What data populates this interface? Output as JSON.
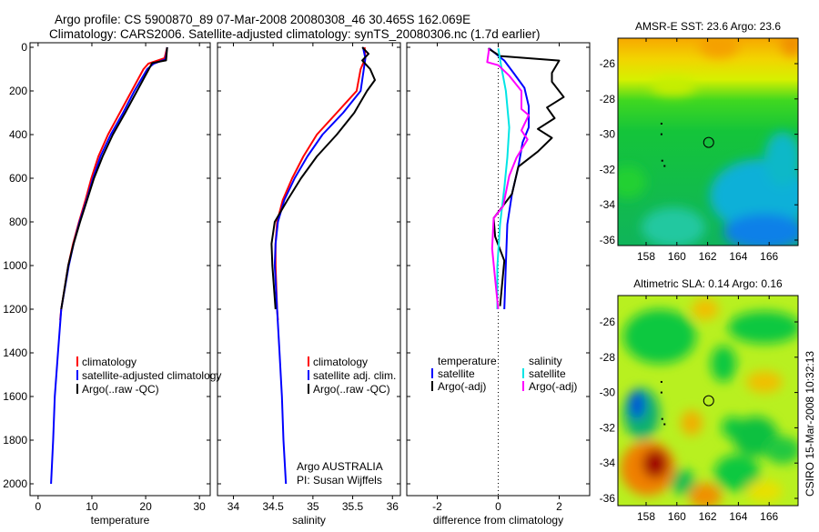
{
  "title": {
    "line1": "Argo profile: CS 5900870_89 07-Mar-2008 20080308_46 30.465S 162.069E",
    "line2": "Climatology: CARS2006. Satellite-adjusted climatology: synTS_20080306.nc (1.7d earlier)"
  },
  "side_text": "CSIRO 15-Mar-2008 10:32:13",
  "credit": {
    "line1": "Argo AUSTRALIA",
    "line2": "PI: Susan Wijffels"
  },
  "colors": {
    "climatology": "#ff0000",
    "satellite": "#0000ff",
    "argo": "#000000",
    "sal_satellite": "#00e5e5",
    "sal_argo": "#ff00ff"
  },
  "depth_axis": {
    "ticks": [
      0,
      200,
      400,
      600,
      800,
      1000,
      1200,
      1400,
      1600,
      1800,
      2000
    ],
    "range": [
      -21,
      2054
    ],
    "reversed": true
  },
  "chart_data": [
    {
      "type": "line",
      "name": "temperature-panel",
      "xlabel": "temperature",
      "xlim": [
        -1.5,
        32
      ],
      "xticks": [
        0,
        10,
        20,
        30
      ],
      "legend": [
        "climatology",
        "satellite-adjusted climatology",
        "Argo(..raw -QC)"
      ],
      "series": [
        {
          "name": "climatology",
          "color": "#ff0000",
          "points": [
            [
              24,
              0
            ],
            [
              23.5,
              50
            ],
            [
              20.5,
              75
            ],
            [
              19.6,
              100
            ],
            [
              17.4,
              200
            ],
            [
              15.2,
              300
            ],
            [
              13,
              400
            ],
            [
              11.2,
              500
            ],
            [
              9.9,
              600
            ],
            [
              8.8,
              700
            ],
            [
              7.6,
              800
            ],
            [
              6.5,
              900
            ],
            [
              5.6,
              1000
            ],
            [
              4.3,
              1200
            ],
            [
              4.1,
              1250
            ]
          ]
        },
        {
          "name": "satellite-adjusted climatology",
          "color": "#0000ff",
          "points": [
            [
              24,
              0
            ],
            [
              23.7,
              55
            ],
            [
              21.5,
              75
            ],
            [
              20.3,
              100
            ],
            [
              17.9,
              200
            ],
            [
              15.8,
              300
            ],
            [
              13.5,
              400
            ],
            [
              11.6,
              500
            ],
            [
              10.2,
              600
            ],
            [
              9,
              700
            ],
            [
              7.7,
              800
            ],
            [
              6.6,
              900
            ],
            [
              5.7,
              1000
            ],
            [
              4.3,
              1200
            ],
            [
              3.7,
              1400
            ],
            [
              3.1,
              1600
            ],
            [
              2.8,
              1800
            ],
            [
              2.4,
              2000
            ]
          ]
        },
        {
          "name": "Argo(..raw -QC)",
          "color": "#000000",
          "points": [
            [
              24,
              0
            ],
            [
              23.8,
              60
            ],
            [
              21.2,
              72
            ],
            [
              20.6,
              100
            ],
            [
              18.4,
              200
            ],
            [
              16.2,
              300
            ],
            [
              13.9,
              400
            ],
            [
              12,
              500
            ],
            [
              10.4,
              600
            ],
            [
              9.1,
              700
            ],
            [
              7.8,
              800
            ],
            [
              6.6,
              900
            ],
            [
              5.6,
              1000
            ],
            [
              4.3,
              1200
            ]
          ]
        }
      ]
    },
    {
      "type": "line",
      "name": "salinity-panel",
      "xlabel": "salinity",
      "xlim": [
        33.8,
        36.1
      ],
      "xticks": [
        34,
        34.5,
        35,
        35.5,
        36
      ],
      "legend": [
        "climatology",
        "satellite adj. clim.",
        "Argo(..raw -QC)"
      ],
      "series": [
        {
          "name": "climatology",
          "color": "#ff0000",
          "points": [
            [
              35.65,
              0
            ],
            [
              35.66,
              50
            ],
            [
              35.6,
              100
            ],
            [
              35.55,
              200
            ],
            [
              35.3,
              300
            ],
            [
              35.05,
              400
            ],
            [
              34.88,
              500
            ],
            [
              34.74,
              600
            ],
            [
              34.62,
              700
            ],
            [
              34.55,
              800
            ],
            [
              34.53,
              900
            ],
            [
              34.53,
              1000
            ],
            [
              34.55,
              1200
            ],
            [
              34.56,
              1250
            ]
          ]
        },
        {
          "name": "satellite adj. clim.",
          "color": "#0000ff",
          "points": [
            [
              35.63,
              0
            ],
            [
              35.66,
              50
            ],
            [
              35.64,
              100
            ],
            [
              35.6,
              200
            ],
            [
              35.38,
              300
            ],
            [
              35.12,
              400
            ],
            [
              34.93,
              500
            ],
            [
              34.77,
              600
            ],
            [
              34.64,
              700
            ],
            [
              34.56,
              800
            ],
            [
              34.53,
              900
            ],
            [
              34.52,
              1000
            ],
            [
              34.55,
              1200
            ],
            [
              34.58,
              1400
            ],
            [
              34.61,
              1600
            ],
            [
              34.63,
              1800
            ],
            [
              34.66,
              2000
            ]
          ]
        },
        {
          "name": "Argo(..raw -QC)",
          "color": "#000000",
          "points": [
            [
              35.62,
              0
            ],
            [
              35.7,
              30
            ],
            [
              35.62,
              60
            ],
            [
              35.72,
              100
            ],
            [
              35.78,
              150
            ],
            [
              35.68,
              200
            ],
            [
              35.52,
              300
            ],
            [
              35.3,
              400
            ],
            [
              35.05,
              500
            ],
            [
              34.85,
              600
            ],
            [
              34.68,
              700
            ],
            [
              34.52,
              800
            ],
            [
              34.48,
              900
            ],
            [
              34.49,
              1000
            ],
            [
              34.53,
              1200
            ]
          ]
        }
      ]
    },
    {
      "type": "line",
      "name": "difference-panel",
      "xlabel": "difference from climatology",
      "xlim": [
        -3,
        3
      ],
      "xticks": [
        -2,
        0,
        2
      ],
      "legend_headers": [
        "temperature",
        "salinity"
      ],
      "legend": [
        "satellite",
        "Argo(-adj)",
        "satellite",
        "Argo(-adj)"
      ],
      "series": [
        {
          "name": "temperature satellite",
          "color": "#0000ff",
          "points": [
            [
              -0.3,
              5
            ],
            [
              0.2,
              61
            ],
            [
              0.5,
              117
            ],
            [
              0.86,
              186
            ],
            [
              1.0,
              269
            ],
            [
              1.0,
              367
            ],
            [
              0.8,
              436
            ],
            [
              0.66,
              547
            ],
            [
              0.45,
              672
            ],
            [
              0.3,
              811
            ],
            [
              0.25,
              992
            ],
            [
              0.2,
              1200
            ]
          ]
        },
        {
          "name": "temperature Argo(-adj)",
          "color": "#000000",
          "points": [
            [
              -0.33,
              5
            ],
            [
              0.06,
              40
            ],
            [
              2.0,
              61
            ],
            [
              1.76,
              117
            ],
            [
              1.76,
              158
            ],
            [
              2.15,
              228
            ],
            [
              1.6,
              276
            ],
            [
              1.85,
              325
            ],
            [
              1.3,
              374
            ],
            [
              1.76,
              415
            ],
            [
              1.3,
              478
            ],
            [
              0.66,
              547
            ],
            [
              0.45,
              672
            ],
            [
              -0.15,
              783
            ],
            [
              -0.1,
              867
            ],
            [
              0.2,
              978
            ],
            [
              0.06,
              1186
            ]
          ]
        },
        {
          "name": "salinity satellite",
          "color": "#00e5e5",
          "points": [
            [
              0.0,
              5
            ],
            [
              0.1,
              89
            ],
            [
              0.25,
              200
            ],
            [
              0.36,
              367
            ],
            [
              0.3,
              506
            ],
            [
              0.2,
              644
            ],
            [
              0.06,
              811
            ],
            [
              -0.03,
              1006
            ],
            [
              -0.03,
              1200
            ]
          ]
        },
        {
          "name": "salinity Argo(-adj)",
          "color": "#ff00ff",
          "points": [
            [
              -0.3,
              5
            ],
            [
              -0.36,
              68
            ],
            [
              0.0,
              82
            ],
            [
              0.36,
              130
            ],
            [
              0.76,
              200
            ],
            [
              0.76,
              283
            ],
            [
              1.0,
              311
            ],
            [
              0.76,
              381
            ],
            [
              0.96,
              422
            ],
            [
              0.6,
              506
            ],
            [
              0.36,
              589
            ],
            [
              0.16,
              728
            ],
            [
              -0.15,
              783
            ],
            [
              -0.2,
              922
            ],
            [
              -0.1,
              1061
            ],
            [
              0.0,
              1200
            ]
          ]
        }
      ]
    },
    {
      "type": "heatmap",
      "name": "sst-map",
      "title": "AMSR-E SST: 23.6 Argo: 23.6",
      "xlim": [
        156.2,
        167.9
      ],
      "ylim": [
        -36.4,
        -24.6
      ],
      "xticks": [
        158,
        160,
        162,
        164,
        166
      ],
      "yticks": [
        -26,
        -28,
        -30,
        -32,
        -34,
        -36
      ],
      "argo_position": [
        162.069,
        -30.465
      ]
    },
    {
      "type": "heatmap",
      "name": "sla-map",
      "title": "Altimetric SLA: 0.14 Argo: 0.16",
      "xlim": [
        156.2,
        167.9
      ],
      "ylim": [
        -36.4,
        -24.6
      ],
      "xticks": [
        158,
        160,
        162,
        164,
        166
      ],
      "yticks": [
        -26,
        -28,
        -30,
        -32,
        -34,
        -36
      ],
      "argo_position": [
        162.069,
        -30.465
      ]
    }
  ]
}
